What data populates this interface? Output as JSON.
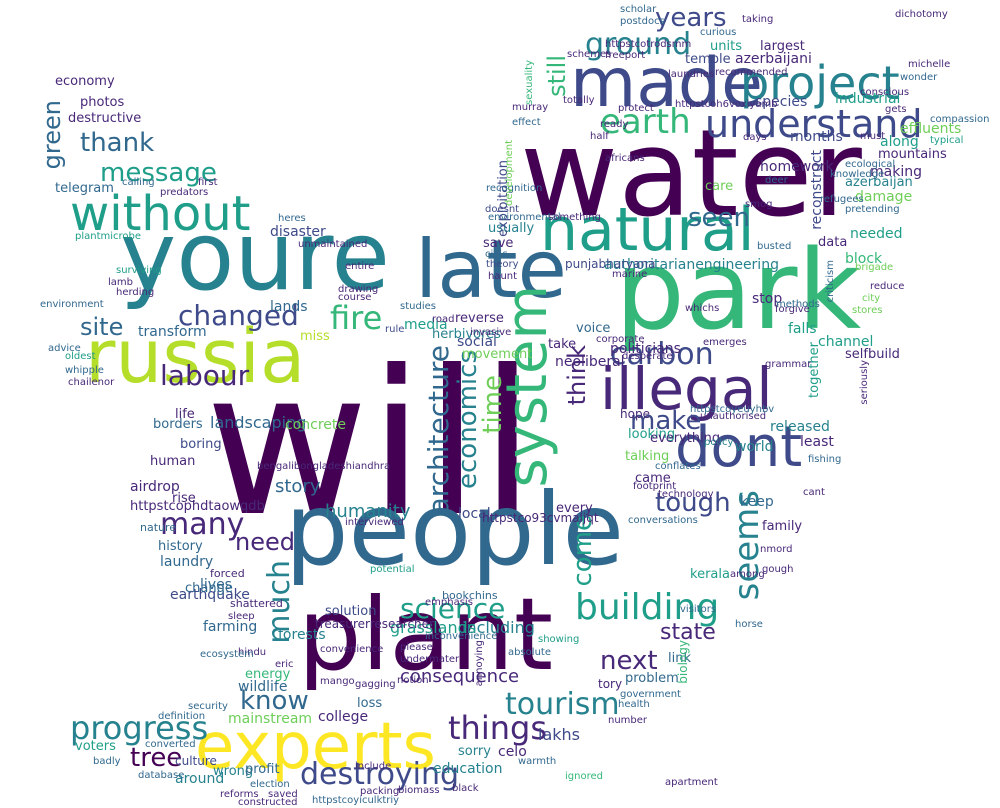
{
  "palette": {
    "dark_purple": "#440154",
    "indigo": "#482878",
    "blue": "#3e4a89",
    "slate": "#31688e",
    "teal": "#26828e",
    "green_teal": "#1f9e89",
    "green": "#35b779",
    "light_green": "#6ece58",
    "lime": "#b5de2b",
    "yellow": "#fde725"
  },
  "words": [
    {
      "t": "will",
      "c": "dark_purple"
    },
    {
      "t": "water",
      "c": "dark_purple"
    },
    {
      "t": "park",
      "c": "green"
    },
    {
      "t": "people",
      "c": "slate"
    },
    {
      "t": "plant",
      "c": "dark_purple"
    },
    {
      "t": "youre",
      "c": "teal"
    },
    {
      "t": "late",
      "c": "slate"
    },
    {
      "t": "made",
      "c": "blue"
    },
    {
      "t": "russia",
      "c": "lime"
    },
    {
      "t": "experts",
      "c": "yellow"
    },
    {
      "t": "natural",
      "c": "green_teal"
    },
    {
      "t": "without",
      "c": "green_teal"
    },
    {
      "t": "illegal",
      "c": "indigo"
    },
    {
      "t": "dont",
      "c": "blue"
    },
    {
      "t": "project",
      "c": "teal"
    },
    {
      "t": "system",
      "c": "green"
    },
    {
      "t": "understand",
      "c": "blue"
    },
    {
      "t": "earth",
      "c": "green"
    },
    {
      "t": "building",
      "c": "green_teal"
    },
    {
      "t": "carbon",
      "c": "blue"
    },
    {
      "t": "destroying",
      "c": "blue"
    },
    {
      "t": "progress",
      "c": "teal"
    },
    {
      "t": "things",
      "c": "indigo"
    },
    {
      "t": "tourism",
      "c": "teal"
    },
    {
      "t": "seems",
      "c": "teal"
    },
    {
      "t": "science",
      "c": "green_teal"
    },
    {
      "t": "much",
      "c": "teal"
    },
    {
      "t": "many",
      "c": "indigo"
    },
    {
      "t": "changed",
      "c": "blue"
    },
    {
      "t": "ground",
      "c": "teal"
    },
    {
      "t": "message",
      "c": "green_teal"
    },
    {
      "t": "fire",
      "c": "green"
    },
    {
      "t": "labour",
      "c": "indigo"
    },
    {
      "t": "site",
      "c": "slate"
    },
    {
      "t": "years",
      "c": "blue"
    },
    {
      "t": "thank",
      "c": "slate"
    },
    {
      "t": "make",
      "c": "blue"
    },
    {
      "t": "architecture",
      "c": "slate"
    },
    {
      "t": "economics",
      "c": "teal"
    },
    {
      "t": "time",
      "c": "light_green"
    },
    {
      "t": "think",
      "c": "indigo"
    },
    {
      "t": "tough",
      "c": "blue"
    },
    {
      "t": "come",
      "c": "green_teal"
    },
    {
      "t": "next",
      "c": "indigo"
    },
    {
      "t": "know",
      "c": "slate"
    },
    {
      "t": "need",
      "c": "indigo"
    },
    {
      "t": "tree",
      "c": "dark_purple"
    },
    {
      "t": "state",
      "c": "indigo"
    },
    {
      "t": "seen",
      "c": "slate"
    },
    {
      "t": "green",
      "c": "slate"
    },
    {
      "t": "still",
      "c": "green"
    },
    {
      "t": "landscaping",
      "c": "slate"
    },
    {
      "t": "story",
      "c": "slate"
    },
    {
      "t": "humanity",
      "c": "teal"
    },
    {
      "t": "consequence",
      "c": "indigo"
    },
    {
      "t": "including",
      "c": "teal"
    },
    {
      "t": "grasslands",
      "c": "green_teal"
    },
    {
      "t": "celo",
      "c": "indigo"
    },
    {
      "t": "lakhs",
      "c": "blue"
    },
    {
      "t": "education",
      "c": "teal"
    },
    {
      "t": "earthquake",
      "c": "blue"
    },
    {
      "t": "mainstream",
      "c": "light_green"
    },
    {
      "t": "wildlife",
      "c": "slate"
    },
    {
      "t": "college",
      "c": "indigo"
    },
    {
      "t": "around",
      "c": "teal"
    },
    {
      "t": "wrong",
      "c": "teal"
    },
    {
      "t": "culture",
      "c": "blue"
    },
    {
      "t": "energy",
      "c": "green"
    },
    {
      "t": "voters",
      "c": "green_teal"
    },
    {
      "t": "politicians",
      "c": "indigo"
    },
    {
      "t": "neoliberal",
      "c": "indigo"
    },
    {
      "t": "social",
      "c": "blue"
    },
    {
      "t": "movement",
      "c": "light_green"
    },
    {
      "t": "media",
      "c": "green_teal"
    },
    {
      "t": "looking",
      "c": "green_teal"
    },
    {
      "t": "released",
      "c": "teal"
    },
    {
      "t": "seems",
      "c": "teal"
    },
    {
      "t": "laundry",
      "c": "slate"
    },
    {
      "t": "history",
      "c": "slate"
    },
    {
      "t": "farming",
      "c": "slate"
    },
    {
      "t": "forests",
      "c": "teal"
    },
    {
      "t": "solution",
      "c": "blue"
    },
    {
      "t": "airdrop",
      "c": "indigo"
    },
    {
      "t": "borders",
      "c": "slate"
    },
    {
      "t": "boring",
      "c": "blue"
    },
    {
      "t": "life",
      "c": "indigo"
    },
    {
      "t": "human",
      "c": "indigo"
    },
    {
      "t": "rise",
      "c": "indigo"
    },
    {
      "t": "lives",
      "c": "slate"
    },
    {
      "t": "transform",
      "c": "slate"
    },
    {
      "t": "concrete",
      "c": "light_green"
    },
    {
      "t": "disaster",
      "c": "blue"
    },
    {
      "t": "lands",
      "c": "slate"
    },
    {
      "t": "loss",
      "c": "slate"
    },
    {
      "t": "profit",
      "c": "slate"
    },
    {
      "t": "save",
      "c": "indigo"
    },
    {
      "t": "usually",
      "c": "teal"
    },
    {
      "t": "herbivores",
      "c": "teal"
    },
    {
      "t": "exploitation",
      "c": "blue"
    },
    {
      "t": "authoritarianengineering",
      "c": "teal"
    },
    {
      "t": "punjabharyana",
      "c": "blue"
    },
    {
      "t": "block",
      "c": "green"
    },
    {
      "t": "stop",
      "c": "indigo"
    },
    {
      "t": "falls",
      "c": "green_teal"
    },
    {
      "t": "channel",
      "c": "green_teal"
    },
    {
      "t": "selfbuild",
      "c": "indigo"
    },
    {
      "t": "needed",
      "c": "green_teal"
    },
    {
      "t": "data",
      "c": "indigo"
    },
    {
      "t": "damage",
      "c": "light_green"
    },
    {
      "t": "making",
      "c": "indigo"
    },
    {
      "t": "azerbaijan",
      "c": "teal"
    },
    {
      "t": "along",
      "c": "green_teal"
    },
    {
      "t": "effluents",
      "c": "light_green"
    },
    {
      "t": "mountains",
      "c": "indigo"
    },
    {
      "t": "months",
      "c": "blue"
    },
    {
      "t": "homework",
      "c": "indigo"
    },
    {
      "t": "species",
      "c": "blue"
    },
    {
      "t": "industrial",
      "c": "green_teal"
    },
    {
      "t": "units",
      "c": "green_teal"
    },
    {
      "t": "largest",
      "c": "indigo"
    },
    {
      "t": "azerbaijani",
      "c": "indigo"
    },
    {
      "t": "temple",
      "c": "blue"
    },
    {
      "t": "reconstruct",
      "c": "blue"
    },
    {
      "t": "care",
      "c": "light_green"
    },
    {
      "t": "telegram",
      "c": "slate"
    },
    {
      "t": "economy",
      "c": "indigo"
    },
    {
      "t": "destructive",
      "c": "indigo"
    },
    {
      "t": "photos",
      "c": "indigo"
    },
    {
      "t": "everything",
      "c": "indigo"
    },
    {
      "t": "world",
      "c": "teal"
    },
    {
      "t": "least",
      "c": "indigo"
    },
    {
      "t": "came",
      "c": "indigo"
    },
    {
      "t": "keep",
      "c": "slate"
    },
    {
      "t": "family",
      "c": "indigo"
    },
    {
      "t": "local",
      "c": "blue"
    },
    {
      "t": "every",
      "c": "indigo"
    },
    {
      "t": "take",
      "c": "indigo"
    },
    {
      "t": "voice",
      "c": "slate"
    },
    {
      "t": "reverse",
      "c": "indigo"
    },
    {
      "t": "talking",
      "c": "light_green"
    },
    {
      "t": "miss",
      "c": "lime"
    },
    {
      "t": "change",
      "c": "slate"
    },
    {
      "t": "problem",
      "c": "slate"
    },
    {
      "t": "link",
      "c": "slate"
    },
    {
      "t": "tory",
      "c": "indigo"
    },
    {
      "t": "biology",
      "c": "green"
    },
    {
      "t": "kerala",
      "c": "green_teal"
    },
    {
      "t": "sorry",
      "c": "teal"
    },
    {
      "t": "hope",
      "c": "indigo"
    },
    {
      "t": "together",
      "c": "green_teal"
    },
    {
      "t": "httpstcophdtaowqdb",
      "c": "indigo"
    },
    {
      "t": "httpstco93cvmaljqt",
      "c": "indigo"
    },
    {
      "t": "treasurerresearcher",
      "c": "indigo"
    },
    {
      "t": "bookchins",
      "c": "slate"
    },
    {
      "t": "nature",
      "c": "slate"
    },
    {
      "t": "forced",
      "c": "indigo"
    },
    {
      "t": "shattered",
      "c": "indigo"
    },
    {
      "t": "advice",
      "c": "slate"
    },
    {
      "t": "oldest",
      "c": "green_teal"
    },
    {
      "t": "whipple",
      "c": "slate"
    },
    {
      "t": "chailenor",
      "c": "indigo"
    },
    {
      "t": "environment",
      "c": "slate"
    },
    {
      "t": "lamb",
      "c": "indigo"
    },
    {
      "t": "herding",
      "c": "indigo"
    },
    {
      "t": "surviving",
      "c": "green_teal"
    },
    {
      "t": "plantmicrobe",
      "c": "green_teal"
    },
    {
      "t": "predators",
      "c": "indigo"
    },
    {
      "t": "calling",
      "c": "slate"
    },
    {
      "t": "first",
      "c": "indigo"
    },
    {
      "t": "heres",
      "c": "slate"
    },
    {
      "t": "unmaintained",
      "c": "indigo"
    },
    {
      "t": "studies",
      "c": "slate"
    },
    {
      "t": "civic",
      "c": "slate"
    },
    {
      "t": "theory",
      "c": "blue"
    },
    {
      "t": "doesnt",
      "c": "blue"
    },
    {
      "t": "haunt",
      "c": "indigo"
    },
    {
      "t": "marine",
      "c": "indigo"
    },
    {
      "t": "recognition",
      "c": "slate"
    },
    {
      "t": "environmental",
      "c": "slate"
    },
    {
      "t": "development",
      "c": "light_green"
    },
    {
      "t": "something",
      "c": "indigo"
    },
    {
      "t": "africans",
      "c": "indigo"
    },
    {
      "t": "deer",
      "c": "slate"
    },
    {
      "t": "smog",
      "c": "indigo"
    },
    {
      "t": "busted",
      "c": "slate"
    },
    {
      "t": "whichs",
      "c": "indigo"
    },
    {
      "t": "forgive",
      "c": "indigo"
    },
    {
      "t": "grammar",
      "c": "indigo"
    },
    {
      "t": "entire",
      "c": "indigo"
    },
    {
      "t": "drawing",
      "c": "indigo"
    },
    {
      "t": "course",
      "c": "indigo"
    },
    {
      "t": "rule",
      "c": "blue"
    },
    {
      "t": "road",
      "c": "indigo"
    },
    {
      "t": "invasive",
      "c": "indigo"
    },
    {
      "t": "corporate",
      "c": "indigo"
    },
    {
      "t": "desperate",
      "c": "indigo"
    },
    {
      "t": "emerges",
      "c": "indigo"
    },
    {
      "t": "unauthorised",
      "c": "indigo"
    },
    {
      "t": "policy",
      "c": "teal"
    },
    {
      "t": "conflates",
      "c": "slate"
    },
    {
      "t": "footprint",
      "c": "indigo"
    },
    {
      "t": "technology",
      "c": "indigo"
    },
    {
      "t": "conversations",
      "c": "slate"
    },
    {
      "t": "cant",
      "c": "indigo"
    },
    {
      "t": "fishing",
      "c": "slate"
    },
    {
      "t": "gough",
      "c": "indigo"
    },
    {
      "t": "horse",
      "c": "slate"
    },
    {
      "t": "nmord",
      "c": "indigo"
    },
    {
      "t": "mango",
      "c": "indigo"
    },
    {
      "t": "gagging",
      "c": "indigo"
    },
    {
      "t": "notion",
      "c": "indigo"
    },
    {
      "t": "please",
      "c": "indigo"
    },
    {
      "t": "undermater",
      "c": "indigo"
    },
    {
      "t": "annoying",
      "c": "indigo"
    },
    {
      "t": "emphasis",
      "c": "indigo"
    },
    {
      "t": "potential",
      "c": "green_teal"
    },
    {
      "t": "convenience",
      "c": "indigo"
    },
    {
      "t": "inconvenience",
      "c": "slate"
    },
    {
      "t": "absolute",
      "c": "slate"
    },
    {
      "t": "showing",
      "c": "green_teal"
    },
    {
      "t": "among",
      "c": "indigo"
    },
    {
      "t": "government",
      "c": "slate"
    },
    {
      "t": "health",
      "c": "slate"
    },
    {
      "t": "number",
      "c": "indigo"
    },
    {
      "t": "warmth",
      "c": "slate"
    },
    {
      "t": "include",
      "c": "indigo"
    },
    {
      "t": "black",
      "c": "indigo"
    },
    {
      "t": "biomass",
      "c": "indigo"
    },
    {
      "t": "packing",
      "c": "indigo"
    },
    {
      "t": "saved",
      "c": "indigo"
    },
    {
      "t": "constructed",
      "c": "indigo"
    },
    {
      "t": "database",
      "c": "slate"
    },
    {
      "t": "converted",
      "c": "slate"
    },
    {
      "t": "badly",
      "c": "slate"
    },
    {
      "t": "security",
      "c": "slate"
    },
    {
      "t": "definition",
      "c": "slate"
    },
    {
      "t": "election",
      "c": "slate"
    },
    {
      "t": "reforms",
      "c": "indigo"
    },
    {
      "t": "httpstcoyiculktriy",
      "c": "slate"
    },
    {
      "t": "bengalibongladeshiandhra",
      "c": "indigo"
    },
    {
      "t": "interviewed",
      "c": "indigo"
    },
    {
      "t": "sleep",
      "c": "indigo"
    },
    {
      "t": "hindu",
      "c": "indigo"
    },
    {
      "t": "eric",
      "c": "indigo"
    },
    {
      "t": "ignored",
      "c": "green"
    },
    {
      "t": "apartment",
      "c": "indigo"
    },
    {
      "t": "visitors",
      "c": "slate"
    },
    {
      "t": "ecosystem",
      "c": "slate"
    },
    {
      "t": "scholar",
      "c": "slate"
    },
    {
      "t": "taking",
      "c": "indigo"
    },
    {
      "t": "postdocs",
      "c": "slate"
    },
    {
      "t": "curious",
      "c": "slate"
    },
    {
      "t": "freeport",
      "c": "indigo"
    },
    {
      "t": "schemes",
      "c": "indigo"
    },
    {
      "t": "laundries",
      "c": "indigo"
    },
    {
      "t": "recommended",
      "c": "indigo"
    },
    {
      "t": "dichotomy",
      "c": "indigo"
    },
    {
      "t": "michelle",
      "c": "indigo"
    },
    {
      "t": "conscious",
      "c": "indigo"
    },
    {
      "t": "wonder",
      "c": "slate"
    },
    {
      "t": "compassion",
      "c": "slate"
    },
    {
      "t": "knowledge",
      "c": "slate"
    },
    {
      "t": "refugees",
      "c": "slate"
    },
    {
      "t": "pretending",
      "c": "slate"
    },
    {
      "t": "methods",
      "c": "slate"
    },
    {
      "t": "seriously",
      "c": "indigo"
    },
    {
      "t": "criticism",
      "c": "slate"
    },
    {
      "t": "reduce",
      "c": "indigo"
    },
    {
      "t": "stores",
      "c": "light_green"
    },
    {
      "t": "city",
      "c": "light_green"
    },
    {
      "t": "brigade",
      "c": "light_green"
    },
    {
      "t": "gets",
      "c": "indigo"
    },
    {
      "t": "typical",
      "c": "green_teal"
    },
    {
      "t": "ecological",
      "c": "slate"
    },
    {
      "t": "must",
      "c": "indigo"
    },
    {
      "t": "days",
      "c": "indigo"
    },
    {
      "t": "protect",
      "c": "indigo"
    },
    {
      "t": "ready",
      "c": "indigo"
    },
    {
      "t": "effect",
      "c": "slate"
    },
    {
      "t": "totally",
      "c": "indigo"
    },
    {
      "t": "murray",
      "c": "indigo"
    },
    {
      "t": "half",
      "c": "indigo"
    },
    {
      "t": "sexuality",
      "c": "green"
    },
    {
      "t": "httpstcotrodsmm",
      "c": "indigo"
    },
    {
      "t": "httpstcoh6voxiyamb",
      "c": "indigo"
    },
    {
      "t": "httpstcoyeuyhbv",
      "c": "slate"
    }
  ]
}
